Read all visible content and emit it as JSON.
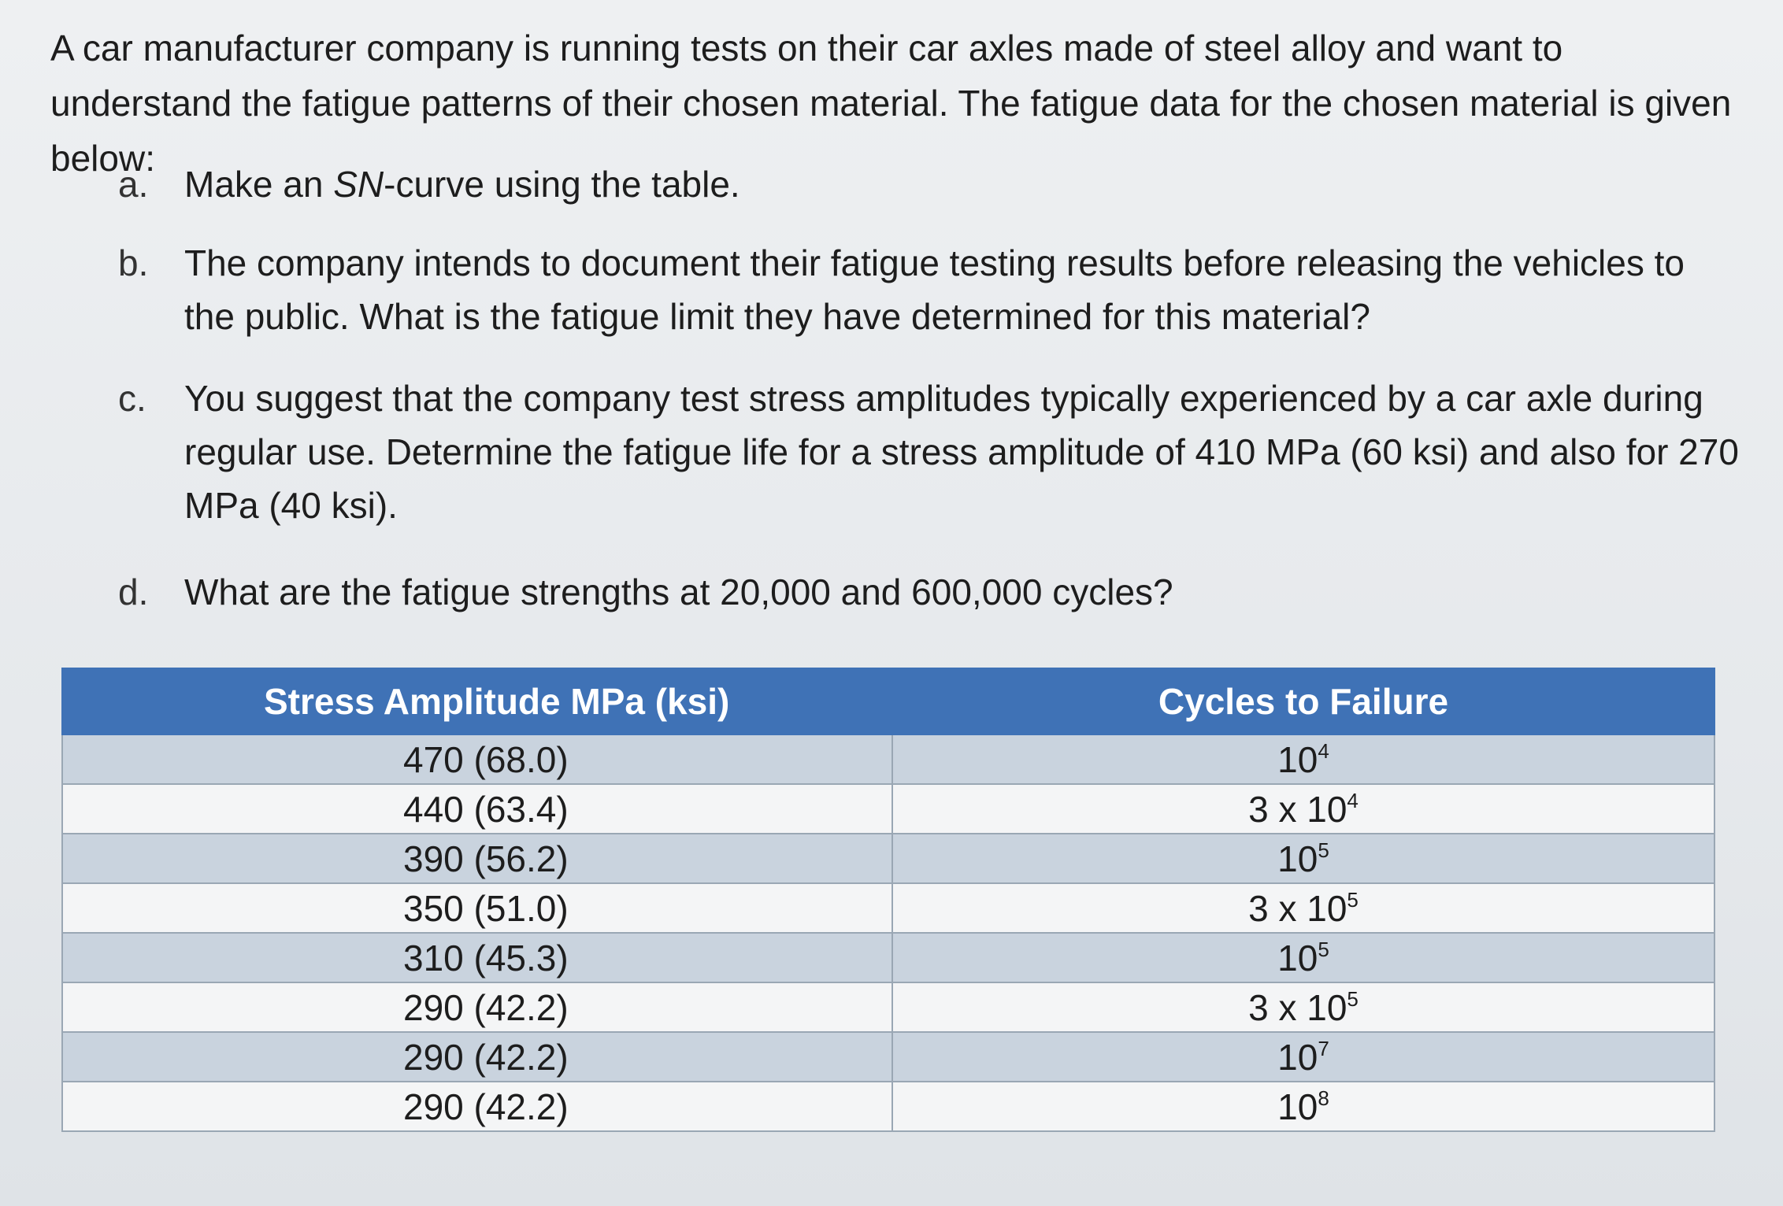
{
  "intro": "A car manufacturer company is running tests on their car axles made of steel alloy and want to understand the fatigue patterns of their chosen material. The fatigue data for the chosen material is given below:",
  "questions": [
    {
      "marker": "a.",
      "text_pre": "Make an ",
      "text_em": "SN",
      "text_post": "-curve using the table."
    },
    {
      "marker": "b.",
      "text": "The company intends to document their fatigue testing results before releasing the vehicles to the public. What is the fatigue limit they have determined for this material?"
    },
    {
      "marker": "c.",
      "text": "You suggest that the company test stress amplitudes typically experienced by a car axle during regular use. Determine the fatigue life for a stress amplitude of 410 MPa (60 ksi) and also for 270 MPa (40 ksi)."
    },
    {
      "marker": "d.",
      "text": "What are the fatigue strengths at 20,000 and 600,000 cycles?"
    }
  ],
  "table": {
    "headers": [
      "Stress Amplitude MPa (ksi)",
      "Cycles to Failure"
    ],
    "rows": [
      {
        "stress": "470 (68.0)",
        "cycles_base": "10",
        "cycles_exp": "4"
      },
      {
        "stress": "440 (63.4)",
        "cycles_base": "3 x 10",
        "cycles_exp": "4"
      },
      {
        "stress": "390 (56.2)",
        "cycles_base": "10",
        "cycles_exp": "5"
      },
      {
        "stress": "350 (51.0)",
        "cycles_base": "3 x 10",
        "cycles_exp": "5"
      },
      {
        "stress": "310 (45.3)",
        "cycles_base": "10",
        "cycles_exp": "5"
      },
      {
        "stress": "290 (42.2)",
        "cycles_base": "3 x 10",
        "cycles_exp": "5"
      },
      {
        "stress": "290 (42.2)",
        "cycles_base": "10",
        "cycles_exp": "7"
      },
      {
        "stress": "290 (42.2)",
        "cycles_base": "10",
        "cycles_exp": "8"
      }
    ]
  }
}
